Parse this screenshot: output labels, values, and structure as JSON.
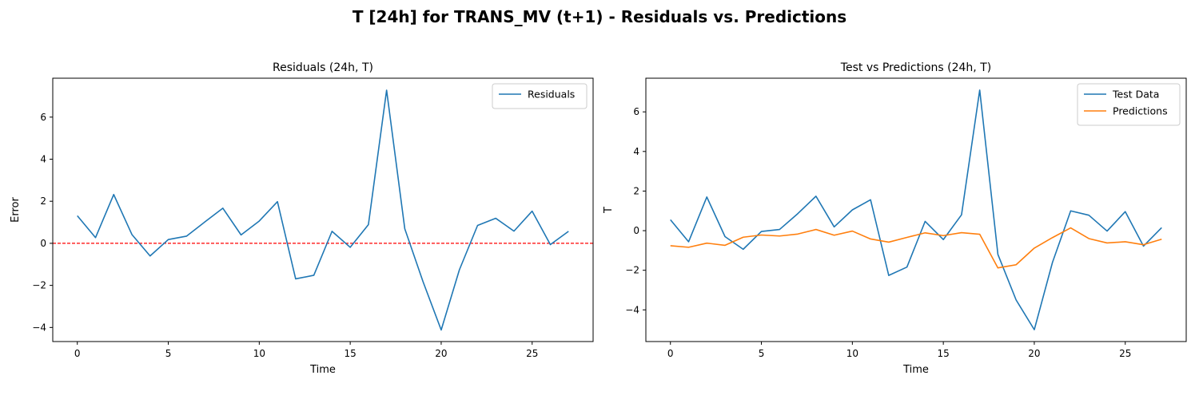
{
  "figure": {
    "title": "T [24h] for TRANS_MV (t+1) - Residuals vs. Predictions"
  },
  "chart_data": [
    {
      "type": "line",
      "title": "Residuals (24h, T)",
      "xlabel": "Time",
      "ylabel": "Error",
      "xlim": [
        -1.35,
        28.35
      ],
      "ylim": [
        -4.67,
        7.85
      ],
      "xticks": [
        0,
        5,
        10,
        15,
        20,
        25
      ],
      "yticks": [
        -4,
        -2,
        0,
        2,
        4,
        6
      ],
      "legend_position": "upper right",
      "hline": {
        "y": 0,
        "color": "#ff0000",
        "style": "dashed"
      },
      "x": [
        0,
        1,
        2,
        3,
        4,
        5,
        6,
        7,
        8,
        9,
        10,
        11,
        12,
        13,
        14,
        15,
        16,
        17,
        18,
        19,
        20,
        21,
        22,
        23,
        24,
        25,
        26,
        27
      ],
      "series": [
        {
          "name": "Residuals",
          "color": "#1f77b4",
          "values": [
            1.31,
            0.27,
            2.32,
            0.42,
            -0.6,
            0.18,
            0.34,
            1.01,
            1.67,
            0.4,
            1.06,
            1.98,
            -1.69,
            -1.52,
            0.57,
            -0.19,
            0.89,
            7.28,
            0.69,
            -1.82,
            -4.12,
            -1.26,
            0.85,
            1.19,
            0.58,
            1.53,
            -0.06,
            0.57
          ]
        }
      ]
    },
    {
      "type": "line",
      "title": "Test vs Predictions (24h, T)",
      "xlabel": "Time",
      "ylabel": "T",
      "xlim": [
        -1.35,
        28.35
      ],
      "ylim": [
        -5.6,
        7.7
      ],
      "xticks": [
        0,
        5,
        10,
        15,
        20,
        25
      ],
      "yticks": [
        -4,
        -2,
        0,
        2,
        4,
        6
      ],
      "legend_position": "upper right",
      "x": [
        0,
        1,
        2,
        3,
        4,
        5,
        6,
        7,
        8,
        9,
        10,
        11,
        12,
        13,
        14,
        15,
        16,
        17,
        18,
        19,
        20,
        21,
        22,
        23,
        24,
        25,
        26,
        27
      ],
      "series": [
        {
          "name": "Test Data",
          "color": "#1f77b4",
          "values": [
            0.55,
            -0.56,
            1.7,
            -0.3,
            -0.94,
            -0.04,
            0.06,
            0.86,
            1.74,
            0.19,
            1.05,
            1.56,
            -2.26,
            -1.84,
            0.47,
            -0.45,
            0.8,
            7.1,
            -1.2,
            -3.5,
            -5.0,
            -1.6,
            1.0,
            0.78,
            -0.02,
            0.96,
            -0.78,
            0.15
          ]
        },
        {
          "name": "Predictions",
          "color": "#ff7f0e",
          "values": [
            -0.76,
            -0.84,
            -0.63,
            -0.74,
            -0.33,
            -0.22,
            -0.27,
            -0.17,
            0.06,
            -0.23,
            -0.02,
            -0.42,
            -0.58,
            -0.34,
            -0.11,
            -0.25,
            -0.1,
            -0.18,
            -1.88,
            -1.72,
            -0.88,
            -0.35,
            0.14,
            -0.4,
            -0.62,
            -0.56,
            -0.71,
            -0.43
          ]
        }
      ]
    }
  ]
}
